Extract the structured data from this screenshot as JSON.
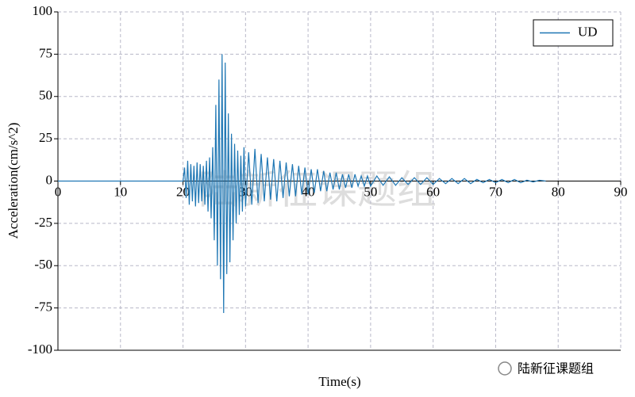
{
  "chart_data": {
    "type": "line",
    "xlabel": "Time(s)",
    "ylabel": "Acceleration(cm/s^2)",
    "watermark": "陆新征课题组",
    "footer": "陆新征课题组",
    "xlim": [
      0,
      90
    ],
    "xticks": [
      0,
      10,
      20,
      30,
      40,
      50,
      60,
      70,
      80,
      90
    ],
    "ylim": [
      -100,
      100
    ],
    "yticks": [
      -100,
      -75,
      -50,
      -25,
      0,
      25,
      50,
      75,
      100
    ],
    "grid": true,
    "legend": "upper right",
    "x": [
      0,
      19.5,
      20,
      20.25,
      20.5,
      20.75,
      21,
      21.25,
      21.5,
      21.75,
      22,
      22.25,
      22.5,
      22.75,
      23,
      23.25,
      23.5,
      23.75,
      24,
      24.25,
      24.5,
      24.75,
      25,
      25.25,
      25.5,
      25.75,
      26,
      26.25,
      26.5,
      26.75,
      27,
      27.25,
      27.5,
      27.75,
      28,
      28.25,
      28.5,
      28.75,
      29,
      29.25,
      29.5,
      29.75,
      30,
      30.5,
      31,
      31.5,
      32,
      32.5,
      33,
      33.5,
      34,
      34.5,
      35,
      35.5,
      36,
      36.5,
      37,
      37.5,
      38,
      38.5,
      39,
      39.5,
      40,
      40.5,
      41,
      41.5,
      42,
      42.5,
      43,
      43.5,
      44,
      44.5,
      45,
      45.5,
      46,
      46.5,
      47,
      47.5,
      48,
      48.5,
      49,
      49.5,
      50,
      51,
      52,
      53,
      54,
      55,
      56,
      57,
      58,
      59,
      60,
      61,
      62,
      63,
      64,
      65,
      66,
      67,
      68,
      69,
      70,
      71,
      72,
      73,
      74,
      75,
      76,
      77,
      78
    ],
    "series": [
      {
        "name": "UD",
        "color": "#1f77b4",
        "values": [
          0,
          0,
          0,
          8,
          -10,
          12,
          -14,
          10,
          -12,
          9,
          -15,
          11,
          -13,
          10,
          -12,
          9,
          -14,
          12,
          -18,
          14,
          -22,
          20,
          -35,
          45,
          -50,
          60,
          -58,
          75,
          -78,
          70,
          -55,
          40,
          -48,
          28,
          -35,
          22,
          -25,
          18,
          -20,
          15,
          -18,
          20,
          -15,
          17,
          -14,
          19,
          -13,
          16,
          -12,
          14,
          -11,
          13,
          -12,
          12,
          -10,
          11,
          -9,
          10,
          -9,
          9,
          -8,
          8,
          -8,
          7,
          -7,
          7,
          -6,
          6,
          -6,
          5,
          -5,
          5,
          -5,
          4,
          -4,
          4,
          -4,
          4,
          -3,
          3,
          -3,
          3,
          -3,
          3,
          -2.5,
          2.5,
          -2.5,
          2,
          -2,
          2,
          -2,
          2,
          -2,
          1.5,
          -1.5,
          1.5,
          -1.5,
          1.5,
          -1.5,
          1,
          -1,
          1,
          -1,
          1,
          -1,
          1,
          -1,
          0.5,
          -0.5,
          0.5,
          0
        ]
      }
    ]
  }
}
